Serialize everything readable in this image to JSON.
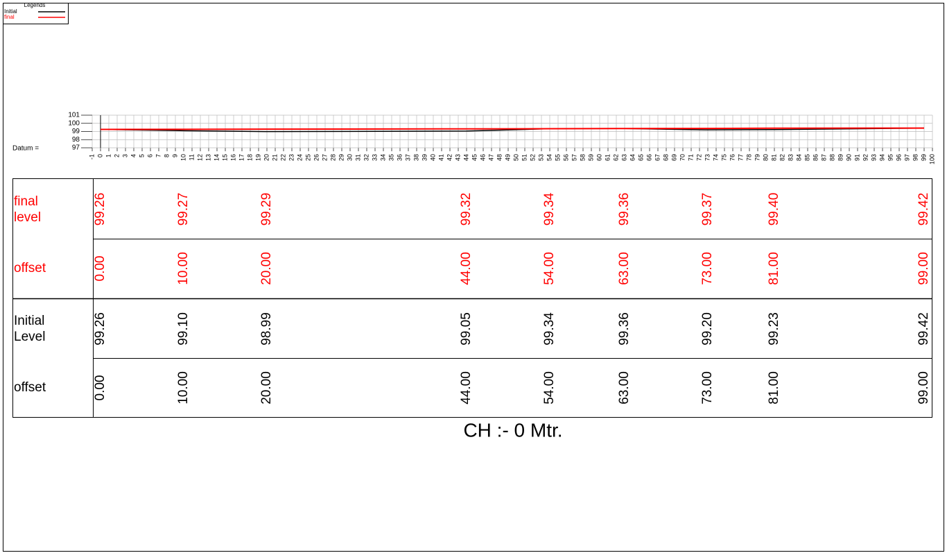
{
  "chart_data": {
    "type": "line",
    "title": "CH :-  0 Mtr.",
    "legend_title": "Legends",
    "legend": "top-left",
    "datum_label": "Datum =",
    "x": [
      0,
      10,
      20,
      44,
      54,
      63,
      73,
      81,
      99
    ],
    "x_labels": [
      "0.00",
      "10.00",
      "20.00",
      "44.00",
      "54.00",
      "63.00",
      "73.00",
      "81.00",
      "99.00"
    ],
    "xlim": [
      -1,
      100
    ],
    "xticks": [
      -1,
      0,
      1,
      2,
      3,
      4,
      5,
      6,
      7,
      8,
      9,
      10,
      11,
      12,
      13,
      14,
      15,
      16,
      17,
      18,
      19,
      20,
      21,
      22,
      23,
      24,
      25,
      26,
      27,
      28,
      29,
      30,
      31,
      32,
      33,
      34,
      35,
      36,
      37,
      38,
      39,
      40,
      41,
      42,
      43,
      44,
      45,
      46,
      47,
      48,
      49,
      50,
      51,
      52,
      53,
      54,
      55,
      56,
      57,
      58,
      59,
      60,
      61,
      62,
      63,
      64,
      65,
      66,
      67,
      68,
      69,
      70,
      71,
      72,
      73,
      74,
      75,
      76,
      77,
      78,
      79,
      80,
      81,
      82,
      83,
      84,
      85,
      86,
      87,
      88,
      89,
      90,
      91,
      92,
      93,
      94,
      95,
      96,
      97,
      98,
      99,
      100
    ],
    "ylim": [
      97,
      101
    ],
    "yticks": [
      97,
      98,
      99,
      100,
      101
    ],
    "grid": true,
    "series": [
      {
        "name": "Initial",
        "color": "#000000",
        "row_label": "Initial Level",
        "offset_label": "offset",
        "values": [
          99.26,
          99.1,
          98.99,
          99.05,
          99.34,
          99.36,
          99.2,
          99.23,
          99.42
        ],
        "value_labels": [
          "99.26",
          "99.10",
          "98.99",
          "99.05",
          "99.34",
          "99.36",
          "99.20",
          "99.23",
          "99.42"
        ]
      },
      {
        "name": "final",
        "color": "#ff0000",
        "row_label": "final level",
        "offset_label": "offset",
        "values": [
          99.26,
          99.27,
          99.29,
          99.32,
          99.34,
          99.36,
          99.37,
          99.4,
          99.42
        ],
        "value_labels": [
          "99.26",
          "99.27",
          "99.29",
          "99.32",
          "99.34",
          "99.36",
          "99.37",
          "99.40",
          "99.42"
        ]
      }
    ]
  }
}
